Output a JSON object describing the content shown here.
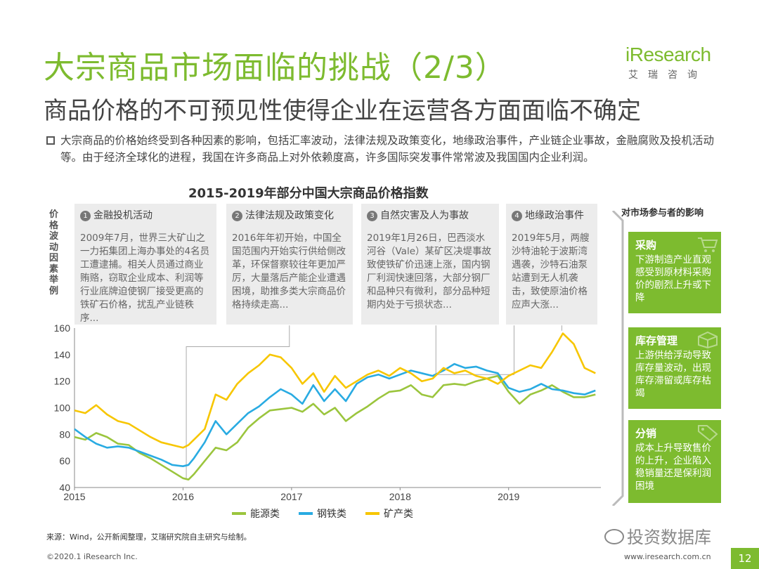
{
  "header": {
    "title": "大宗商品市场面临的挑战（2/3）",
    "subtitle": "商品价格的不可预见性使得企业在运营各方面面临不确定",
    "logo_main": "iResearch",
    "logo_sub": "艾瑞咨询"
  },
  "intro": "大宗商品的价格始终受到各种因素的影响，包括汇率波动，法律法规及政策变化，地缘政治事件，产业链企业事故，金融腐败及投机活动等。由于经济全球化的进程，我国在许多商品上对外依赖度高，许多国际突发事件常常波及我国国内企业利润。",
  "chart_title": "2015-2019年部分中国大宗商品价格指数",
  "ylabel_vertical": "价格波动因素举例",
  "cards": [
    {
      "num": "1",
      "title": "金融投机活动",
      "text": "2009年7月，世界三大矿山之一力拓集团上海办事处的4名员工遭逮捕。相关人员通过商业贿赂，窃取企业成本、利润等行业底牌迫使钢厂接受更高的铁矿石价格，扰乱产业链秩序..."
    },
    {
      "num": "2",
      "title": "法律法规及政策变化",
      "text": "2016年年初开始，中国全国范围内开始实行供给侧改革，环保督察较往年更加严厉，大量落后产能企业遭遇困境，助推多类大宗商品价格持续走高..."
    },
    {
      "num": "3",
      "title": "自然灾害及人为事故",
      "text": "2019年1月26日，巴西淡水河谷（Vale）某矿区决堤事故致使铁矿价迅速上涨，国内钢厂利润快速回落，大部分钢厂和品种只有微利，部分品种短期内处于亏损状态..."
    },
    {
      "num": "4",
      "title": "地缘政治事件",
      "text": "2019年5月，两艘沙特油轮于波斯湾遇袭，沙特石油泵站遭到无人机袭击，致使原油价格应声大涨..."
    }
  ],
  "side": {
    "heading": "对市场参与者的影响",
    "boxes": [
      {
        "title": "采购",
        "text": "下游制造产业直观感受到原材料采购价的剧烈上升或下降",
        "icon": "cart-icon"
      },
      {
        "title": "库存管理",
        "text": "上游供给浮动导致库存量波动，出现库存滞留或库存枯竭",
        "icon": "box-icon"
      },
      {
        "title": "分销",
        "text": "成本上升导致售价的上升，企业陷入稳销量还是保利润困境",
        "icon": "tag-icon"
      }
    ]
  },
  "source": "来源：Wind，公开新闻整理，艾瑞研究院自主研究与绘制。",
  "footer_left": "©2020.1 iResearch Inc.",
  "footer_right": "www.iresearch.com.cn",
  "page_number": "12",
  "watermark": "投资数据库",
  "colors": {
    "brand": "#7dbb2f",
    "energy": "#9bc53d",
    "steel": "#29abe2",
    "mining": "#f7c600"
  },
  "chart_data": {
    "type": "line",
    "title": "2015-2019年部分中国大宗商品价格指数",
    "x_ticks": [
      "2015",
      "2016",
      "2017",
      "2018",
      "2019"
    ],
    "xlim": [
      2015,
      2019.85
    ],
    "ylim": [
      40,
      160
    ],
    "yticks": [
      40,
      60,
      80,
      100,
      120,
      140,
      160
    ],
    "legend_position": "bottom-center",
    "grid": false,
    "x": [
      2015.0,
      2015.1,
      2015.2,
      2015.3,
      2015.4,
      2015.5,
      2015.6,
      2015.7,
      2015.8,
      2015.9,
      2016.0,
      2016.05,
      2016.1,
      2016.2,
      2016.3,
      2016.4,
      2016.5,
      2016.6,
      2016.7,
      2016.8,
      2016.9,
      2017.0,
      2017.1,
      2017.2,
      2017.3,
      2017.4,
      2017.5,
      2017.6,
      2017.7,
      2017.8,
      2017.9,
      2018.0,
      2018.1,
      2018.2,
      2018.3,
      2018.4,
      2018.5,
      2018.6,
      2018.7,
      2018.8,
      2018.9,
      2019.0,
      2019.1,
      2019.2,
      2019.3,
      2019.4,
      2019.5,
      2019.6,
      2019.7,
      2019.8
    ],
    "series": [
      {
        "name": "能源类",
        "color": "#9bc53d",
        "values": [
          78,
          76,
          81,
          78,
          73,
          72,
          66,
          62,
          57,
          52,
          47,
          46,
          50,
          60,
          70,
          68,
          74,
          85,
          92,
          98,
          99,
          100,
          97,
          103,
          95,
          100,
          90,
          96,
          101,
          107,
          112,
          113,
          117,
          110,
          108,
          117,
          118,
          117,
          120,
          122,
          124,
          112,
          103,
          110,
          113,
          117,
          112,
          108,
          108,
          110
        ]
      },
      {
        "name": "钢铁类",
        "color": "#29abe2",
        "values": [
          84,
          78,
          73,
          70,
          71,
          70,
          67,
          64,
          61,
          57,
          56,
          57,
          62,
          74,
          90,
          80,
          88,
          96,
          101,
          108,
          114,
          110,
          103,
          117,
          105,
          114,
          105,
          118,
          123,
          125,
          122,
          125,
          128,
          126,
          124,
          128,
          133,
          130,
          131,
          128,
          126,
          115,
          112,
          114,
          118,
          114,
          113,
          111,
          110,
          113
        ]
      },
      {
        "name": "矿产类",
        "color": "#f7c600",
        "values": [
          98,
          96,
          102,
          95,
          90,
          88,
          83,
          78,
          74,
          72,
          70,
          72,
          76,
          84,
          110,
          106,
          118,
          126,
          132,
          140,
          138,
          130,
          118,
          126,
          112,
          124,
          115,
          120,
          125,
          128,
          124,
          130,
          126,
          120,
          122,
          130,
          126,
          128,
          124,
          122,
          118,
          124,
          128,
          132,
          130,
          142,
          156,
          148,
          130,
          126
        ]
      }
    ]
  }
}
